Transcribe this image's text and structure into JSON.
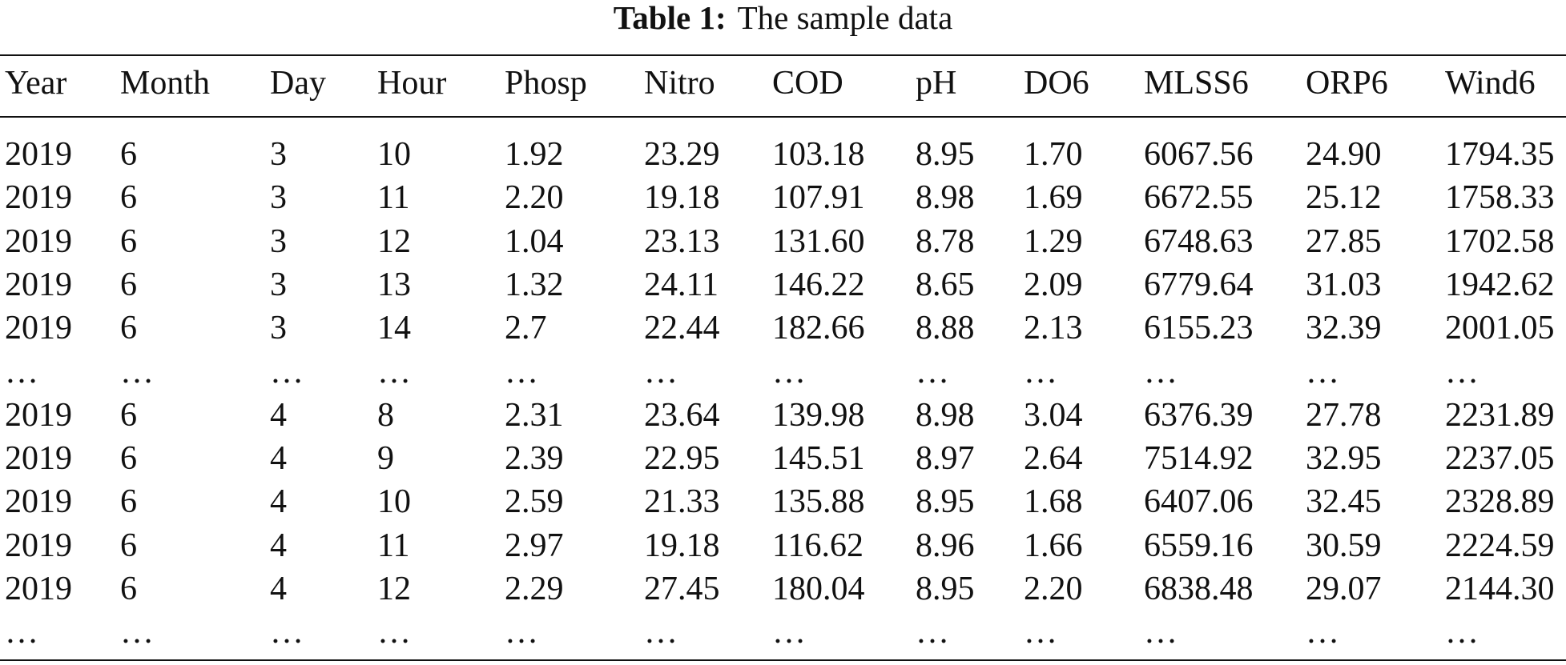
{
  "caption": {
    "label": "Table 1:",
    "text": "The sample data"
  },
  "table": {
    "header": [
      "Year",
      "Month",
      "Day",
      "Hour",
      "Phosp",
      "Nitro",
      "COD",
      "pH",
      "DO6",
      "MLSS6",
      "ORP6",
      "Wind6"
    ],
    "rows": [
      [
        "2019",
        "6",
        "3",
        "10",
        "1.92",
        "23.29",
        "103.18",
        "8.95",
        "1.70",
        "6067.56",
        "24.90",
        "1794.35"
      ],
      [
        "2019",
        "6",
        "3",
        "11",
        "2.20",
        "19.18",
        "107.91",
        "8.98",
        "1.69",
        "6672.55",
        "25.12",
        "1758.33"
      ],
      [
        "2019",
        "6",
        "3",
        "12",
        "1.04",
        "23.13",
        "131.60",
        "8.78",
        "1.29",
        "6748.63",
        "27.85",
        "1702.58"
      ],
      [
        "2019",
        "6",
        "3",
        "13",
        "1.32",
        "24.11",
        "146.22",
        "8.65",
        "2.09",
        "6779.64",
        "31.03",
        "1942.62"
      ],
      [
        "2019",
        "6",
        "3",
        "14",
        "2.7",
        "22.44",
        "182.66",
        "8.88",
        "2.13",
        "6155.23",
        "32.39",
        "2001.05"
      ],
      [
        "…",
        "…",
        "…",
        "…",
        "…",
        "…",
        "…",
        "…",
        "…",
        "…",
        "…",
        "…"
      ],
      [
        "2019",
        "6",
        "4",
        "8",
        "2.31",
        "23.64",
        "139.98",
        "8.98",
        "3.04",
        "6376.39",
        "27.78",
        "2231.89"
      ],
      [
        "2019",
        "6",
        "4",
        "9",
        "2.39",
        "22.95",
        "145.51",
        "8.97",
        "2.64",
        "7514.92",
        "32.95",
        "2237.05"
      ],
      [
        "2019",
        "6",
        "4",
        "10",
        "2.59",
        "21.33",
        "135.88",
        "8.95",
        "1.68",
        "6407.06",
        "32.45",
        "2328.89"
      ],
      [
        "2019",
        "6",
        "4",
        "11",
        "2.97",
        "19.18",
        "116.62",
        "8.96",
        "1.66",
        "6559.16",
        "30.59",
        "2224.59"
      ],
      [
        "2019",
        "6",
        "4",
        "12",
        "2.29",
        "27.45",
        "180.04",
        "8.95",
        "2.20",
        "6838.48",
        "29.07",
        "2144.30"
      ],
      [
        "…",
        "…",
        "…",
        "…",
        "…",
        "…",
        "…",
        "…",
        "…",
        "…",
        "…",
        "…"
      ]
    ]
  }
}
